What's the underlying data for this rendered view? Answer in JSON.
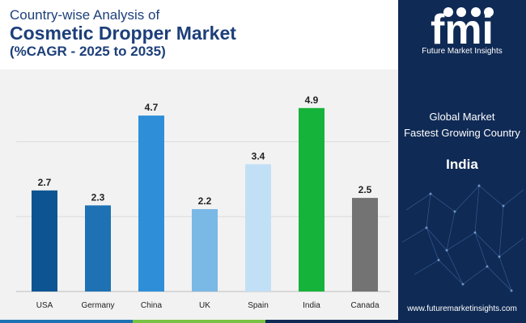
{
  "header": {
    "line1": "Country-wise Analysis of",
    "line2": "Cosmetic Dropper Market",
    "line3": "(%CAGR - 2025 to 2035)"
  },
  "chart_data": {
    "type": "bar",
    "categories": [
      "USA",
      "Germany",
      "China",
      "UK",
      "Spain",
      "India",
      "Canada"
    ],
    "values": [
      2.7,
      2.3,
      4.7,
      2.2,
      3.4,
      4.9,
      2.5
    ],
    "colors": [
      "#0d5592",
      "#1e72b4",
      "#2e8fd8",
      "#7ab8e6",
      "#c2e0f5",
      "#16b33a",
      "#737373"
    ],
    "title": "Cosmetic Dropper Market",
    "ylim": [
      0,
      5.5
    ],
    "grid": true,
    "gridlines": [
      0,
      2,
      4
    ]
  },
  "sidebar": {
    "logo_text": "fmi",
    "logo_subtitle": "Future Market Insights",
    "label_line1": "Global Market",
    "label_line2": "Fastest Growing Country",
    "country": "India",
    "url": "www.futuremarketinsights.com",
    "bg_color": "#0f2a55"
  },
  "bottom_strip_colors": [
    "#1e72b4",
    "#79c143",
    "#0f2a55"
  ]
}
